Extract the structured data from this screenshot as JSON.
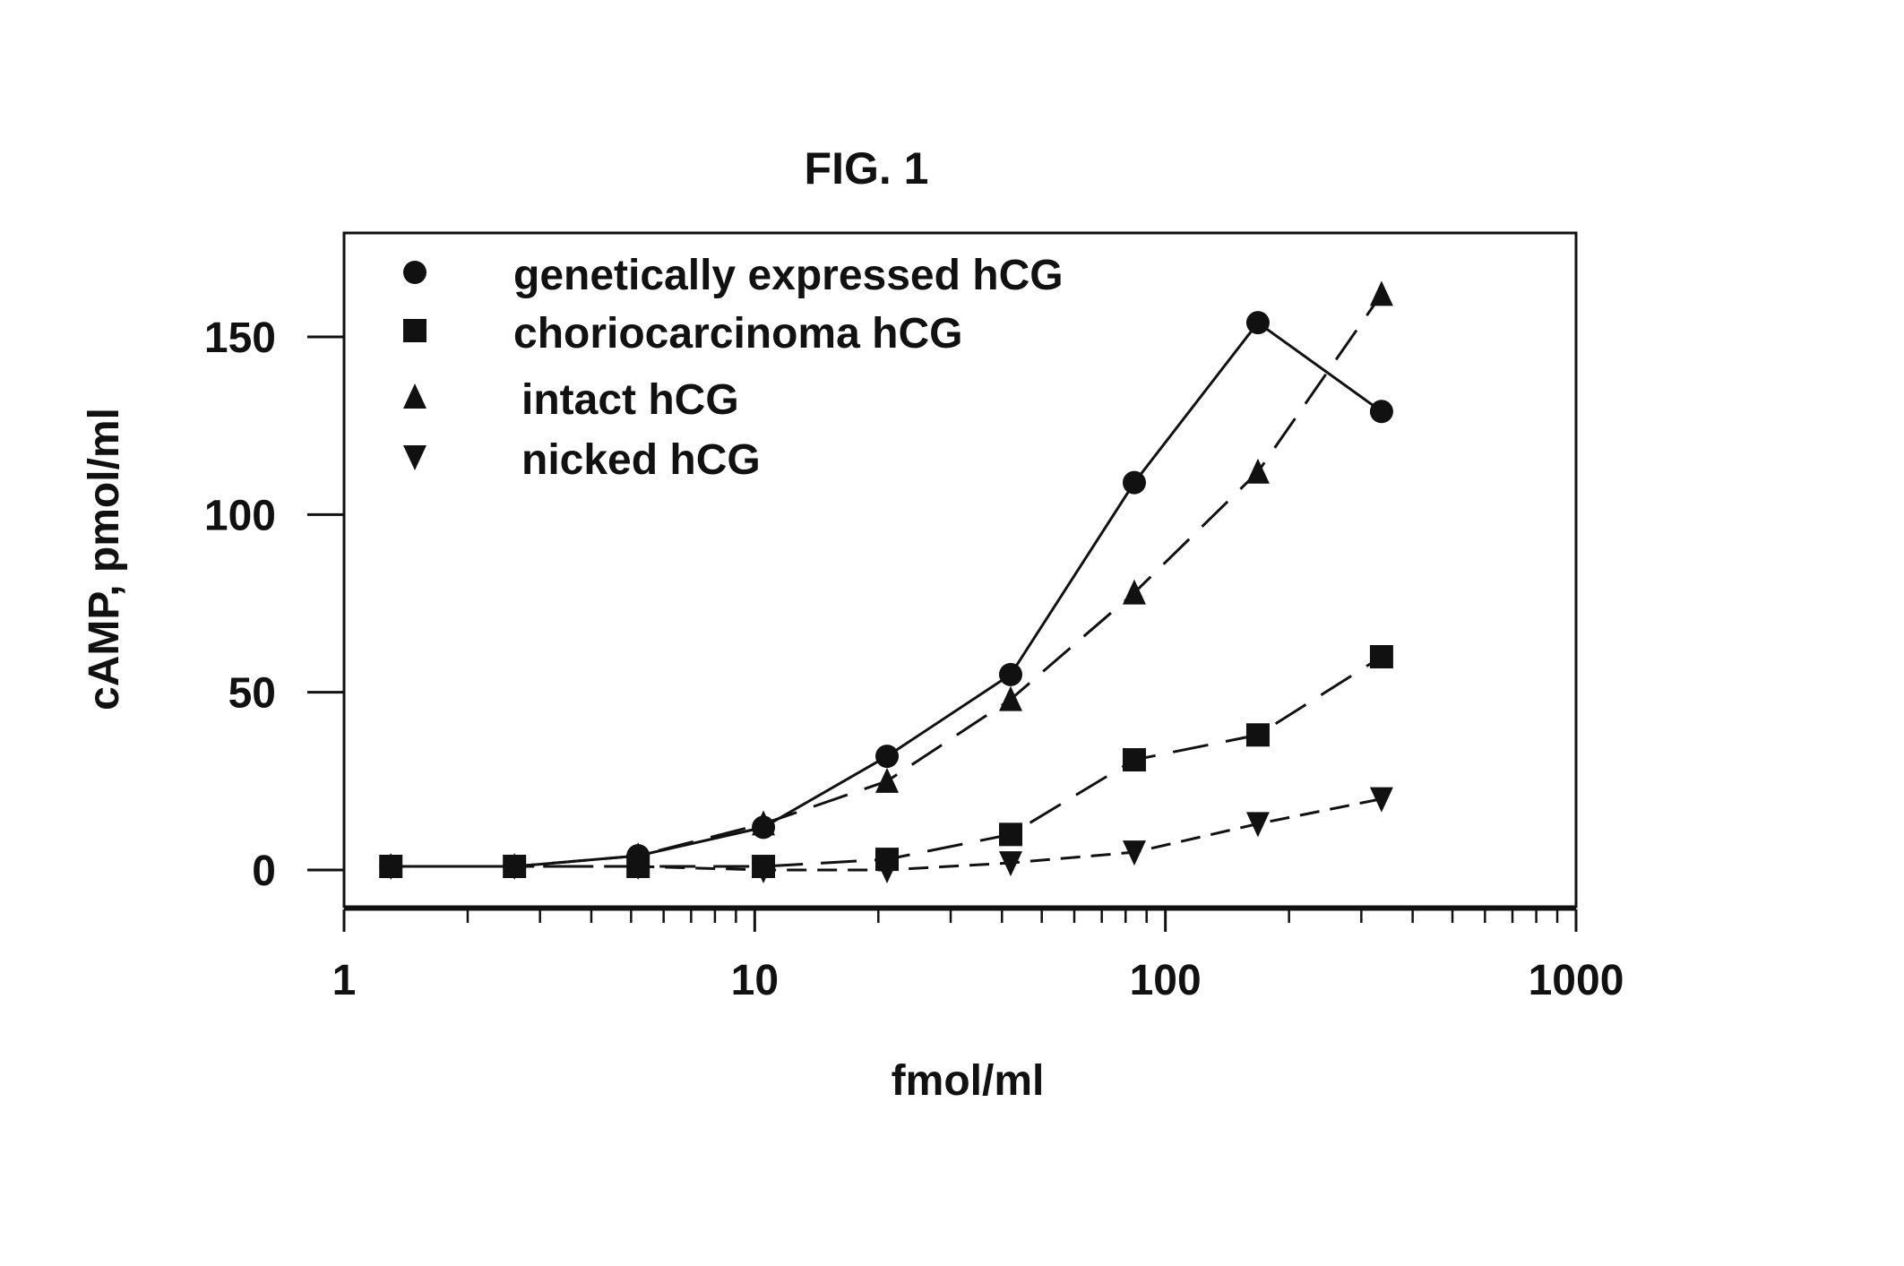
{
  "chart_data": {
    "type": "line",
    "title": "FIG. 1",
    "xlabel": "fmol/ml",
    "ylabel": "cAMP, pmol/ml",
    "xscale": "log",
    "xlim": [
      1,
      1000
    ],
    "ylim": [
      -10,
      175
    ],
    "xticks": [
      1,
      10,
      100,
      1000
    ],
    "xtick_labels": [
      "1",
      "10",
      "100",
      "1000"
    ],
    "yticks": [
      0,
      50,
      100,
      150
    ],
    "ytick_labels": [
      "0",
      "50",
      "100",
      "150"
    ],
    "grid": false,
    "legend_position": "top-left",
    "x": [
      1.3,
      2.6,
      5.2,
      10.5,
      21,
      42,
      84,
      168,
      336
    ],
    "series": [
      {
        "name": "genetically expressed hCG",
        "marker": "circle",
        "line": "solid",
        "values": [
          1,
          1,
          4,
          12,
          32,
          55,
          109,
          154,
          129
        ]
      },
      {
        "name": "choriocarcinoma hCG",
        "marker": "square",
        "line": "dashed",
        "values": [
          1,
          1,
          1,
          1,
          3,
          10,
          31,
          38,
          60
        ]
      },
      {
        "name": "intact hCG",
        "marker": "triangle-up",
        "line": "dashed",
        "values": [
          1,
          1,
          4,
          13,
          25,
          48,
          78,
          112,
          162
        ]
      },
      {
        "name": "nicked hCG",
        "marker": "triangle-down",
        "line": "dashed",
        "values": [
          1,
          1,
          1,
          0,
          0,
          2,
          5,
          13,
          20
        ]
      }
    ],
    "color": "#111111"
  }
}
